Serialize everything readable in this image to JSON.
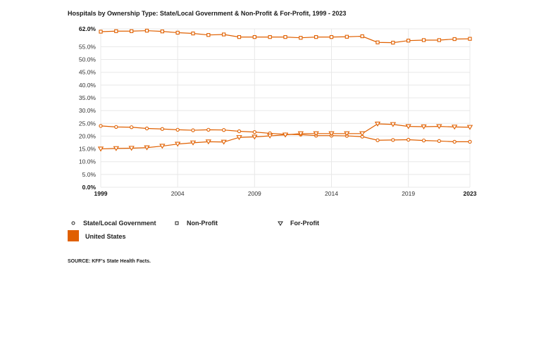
{
  "chart_data": {
    "type": "line",
    "title": "Hospitals by Ownership Type: State/Local Government & Non-Profit & For-Profit, 1999 - 2023",
    "xlabel": "",
    "ylabel": "",
    "x": [
      1999,
      2000,
      2001,
      2002,
      2003,
      2004,
      2005,
      2006,
      2007,
      2008,
      2009,
      2010,
      2011,
      2012,
      2013,
      2014,
      2015,
      2016,
      2017,
      2018,
      2019,
      2020,
      2021,
      2022,
      2023
    ],
    "x_tick_labels": [
      "1999",
      "2004",
      "2009",
      "2014",
      "2019",
      "2023"
    ],
    "y_tick_labels": [
      "0.0%",
      "5.0%",
      "10.0%",
      "15.0%",
      "20.0%",
      "25.0%",
      "30.0%",
      "35.0%",
      "40.0%",
      "45.0%",
      "50.0%",
      "55.0%",
      "62.0%"
    ],
    "ylim": [
      0,
      62
    ],
    "grid": true,
    "series": [
      {
        "name": "State/Local Government",
        "marker": "circle",
        "values": [
          24.0,
          23.6,
          23.5,
          23.0,
          22.8,
          22.5,
          22.3,
          22.5,
          22.4,
          21.9,
          21.6,
          21.1,
          20.7,
          20.6,
          20.2,
          20.2,
          20.1,
          19.8,
          18.4,
          18.5,
          18.6,
          18.3,
          18.1,
          17.8,
          17.8
        ]
      },
      {
        "name": "Non-Profit",
        "marker": "square",
        "values": [
          60.9,
          61.1,
          61.1,
          61.3,
          61.0,
          60.5,
          60.2,
          59.6,
          59.8,
          58.8,
          58.8,
          58.8,
          58.8,
          58.5,
          58.8,
          58.8,
          58.9,
          59.1,
          56.7,
          56.6,
          57.4,
          57.6,
          57.6,
          58.0,
          58.1
        ]
      },
      {
        "name": "For-Profit",
        "marker": "triangle-down",
        "values": [
          15.0,
          15.2,
          15.3,
          15.5,
          16.1,
          16.9,
          17.4,
          17.8,
          17.7,
          19.5,
          19.7,
          20.1,
          20.5,
          21.0,
          21.0,
          21.0,
          21.0,
          21.0,
          24.8,
          24.6,
          23.8,
          23.7,
          23.8,
          23.6,
          23.5
        ]
      }
    ],
    "legend_location": "United States",
    "source": "SOURCE: KFF's State Health Facts.",
    "colors": {
      "line": "#e06000",
      "location": "#e06000",
      "grid": "#e8e8e8",
      "marker_fill": "#ffffff"
    }
  }
}
